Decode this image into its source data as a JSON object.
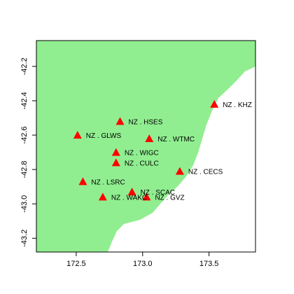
{
  "chart_data": {
    "type": "scatter",
    "title": "",
    "xlabel": "",
    "ylabel": "",
    "xlim": [
      172.2,
      173.85
    ],
    "ylim": [
      -43.28,
      -42.05
    ],
    "x_ticks": [
      "172.5",
      "173.0",
      "173.5"
    ],
    "y_ticks": [
      "-42.2",
      "-42.4",
      "-42.6",
      "-42.8",
      "-43.0",
      "-43.2"
    ],
    "land_color": "#90EE90",
    "sea_color": "#FFFFFF",
    "marker_color": "#FF0000",
    "marker_shape": "triangle",
    "stations": [
      {
        "label": "NZ . KHZ",
        "lon": 173.54,
        "lat": -42.42
      },
      {
        "label": "NZ . HSES",
        "lon": 172.83,
        "lat": -42.52
      },
      {
        "label": "NZ . GLWS",
        "lon": 172.51,
        "lat": -42.6
      },
      {
        "label": "NZ . WTMC",
        "lon": 173.05,
        "lat": -42.62
      },
      {
        "label": "NZ . WIGC",
        "lon": 172.8,
        "lat": -42.7
      },
      {
        "label": "NZ . CULC",
        "lon": 172.8,
        "lat": -42.76
      },
      {
        "label": "NZ . CECS",
        "lon": 173.28,
        "lat": -42.81
      },
      {
        "label": "NZ . LSRC",
        "lon": 172.55,
        "lat": -42.87
      },
      {
        "label": "NZ . SCAC",
        "lon": 172.92,
        "lat": -42.93
      },
      {
        "label": "NZ . WAKC",
        "lon": 172.7,
        "lat": -42.96
      },
      {
        "label": "NZ . GVZ",
        "lon": 173.03,
        "lat": -42.96
      }
    ]
  }
}
